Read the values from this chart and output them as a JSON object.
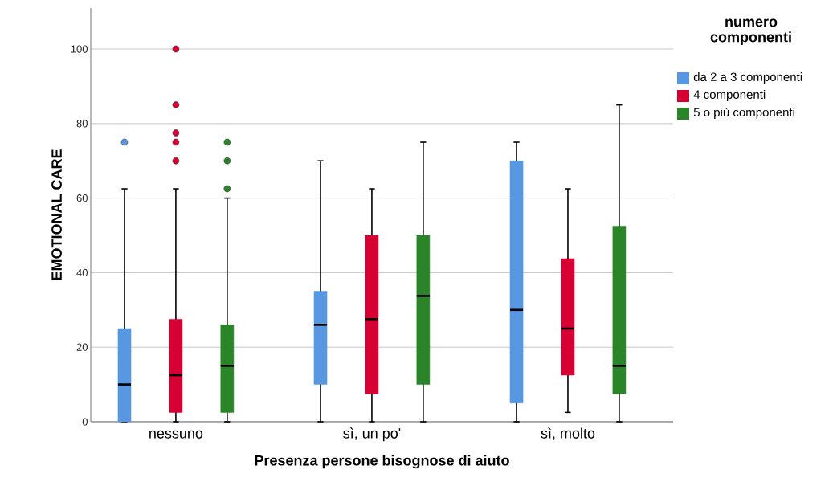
{
  "chart_data": {
    "type": "box",
    "xlabel": "Presenza persone bisognose di aiuto",
    "ylabel": "EMOTIONAL CARE",
    "legend_title": "numero componenti",
    "categories": [
      "nessuno",
      "sì, un po'",
      "sì, molto"
    ],
    "series": [
      {
        "name": "da 2 a 3 componenti",
        "color": "#5898e2",
        "boxes": [
          {
            "low": 0,
            "q1": 0,
            "median": 10,
            "q3": 25,
            "high": 62.5,
            "outliers": [
              75
            ]
          },
          {
            "low": 0,
            "q1": 10,
            "median": 26,
            "q3": 35,
            "high": 70
          },
          {
            "low": 0,
            "q1": 5,
            "median": 30,
            "q3": 70,
            "high": 75
          }
        ]
      },
      {
        "name": "4 componenti",
        "color": "#d70032",
        "boxes": [
          {
            "low": 0,
            "q1": 2.5,
            "median": 12.5,
            "q3": 27.5,
            "high": 62.5,
            "outliers": [
              70,
              75,
              77.5,
              85,
              100
            ]
          },
          {
            "low": 0,
            "q1": 7.5,
            "median": 27.5,
            "q3": 50,
            "high": 62.5
          },
          {
            "low": 2.5,
            "q1": 12.5,
            "median": 25,
            "q3": 43.75,
            "high": 62.5
          }
        ]
      },
      {
        "name": "5 o più componenti",
        "color": "#2a8529",
        "boxes": [
          {
            "low": 0,
            "q1": 2.5,
            "median": 15,
            "q3": 26,
            "high": 60,
            "outliers": [
              62.5,
              70,
              75
            ]
          },
          {
            "low": 0,
            "q1": 10,
            "median": 33.75,
            "q3": 50,
            "high": 75
          },
          {
            "low": 0,
            "q1": 7.5,
            "median": 15,
            "q3": 52.5,
            "high": 85
          }
        ]
      }
    ],
    "ylim": [
      0,
      111
    ],
    "yticks": [
      0,
      20,
      40,
      60,
      80,
      100
    ],
    "grid": "y",
    "legend": "top right"
  }
}
